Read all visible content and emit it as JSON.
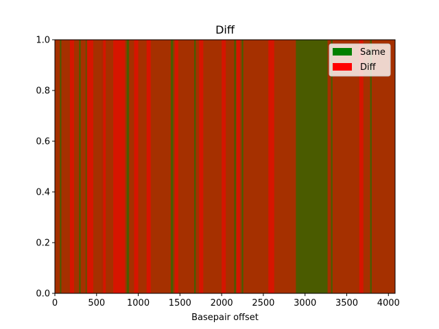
{
  "chart_data": {
    "type": "bar",
    "title": "Diff",
    "xlabel": "Basepair offset",
    "ylabel": "",
    "xlim": [
      0,
      4080
    ],
    "ylim": [
      0,
      1.0
    ],
    "xticks": [
      0,
      500,
      1000,
      1500,
      2000,
      2500,
      3000,
      3500,
      4000
    ],
    "xtick_labels": [
      "0",
      "500",
      "1000",
      "1500",
      "2000",
      "2500",
      "3000",
      "3500",
      "4000"
    ],
    "yticks": [
      0.0,
      0.2,
      0.4,
      0.6,
      0.8,
      1.0
    ],
    "ytick_labels": [
      "0.0",
      "0.2",
      "0.4",
      "0.6",
      "0.8",
      "1.0"
    ],
    "grid": false,
    "legend_position": "top-right",
    "background_color": "#a53000",
    "series": [
      {
        "name": "Same",
        "color": "#008000",
        "ranges": [
          [
            60,
            78
          ],
          [
            290,
            310
          ],
          [
            370,
            390
          ],
          [
            560,
            580
          ],
          [
            860,
            890
          ],
          [
            1390,
            1420
          ],
          [
            1670,
            1690
          ],
          [
            2150,
            2170
          ],
          [
            2240,
            2260
          ],
          [
            2890,
            3270
          ],
          [
            3310,
            3330
          ],
          [
            3780,
            3800
          ]
        ]
      },
      {
        "name": "Diff",
        "color": "#ff0000",
        "ranges": [
          [
            180,
            230
          ],
          [
            380,
            460
          ],
          [
            560,
            610
          ],
          [
            700,
            840
          ],
          [
            950,
            1000
          ],
          [
            1100,
            1150
          ],
          [
            1440,
            1480
          ],
          [
            1730,
            1780
          ],
          [
            2000,
            2050
          ],
          [
            2180,
            2220
          ],
          [
            2560,
            2630
          ],
          [
            3650,
            3700
          ]
        ]
      }
    ]
  }
}
